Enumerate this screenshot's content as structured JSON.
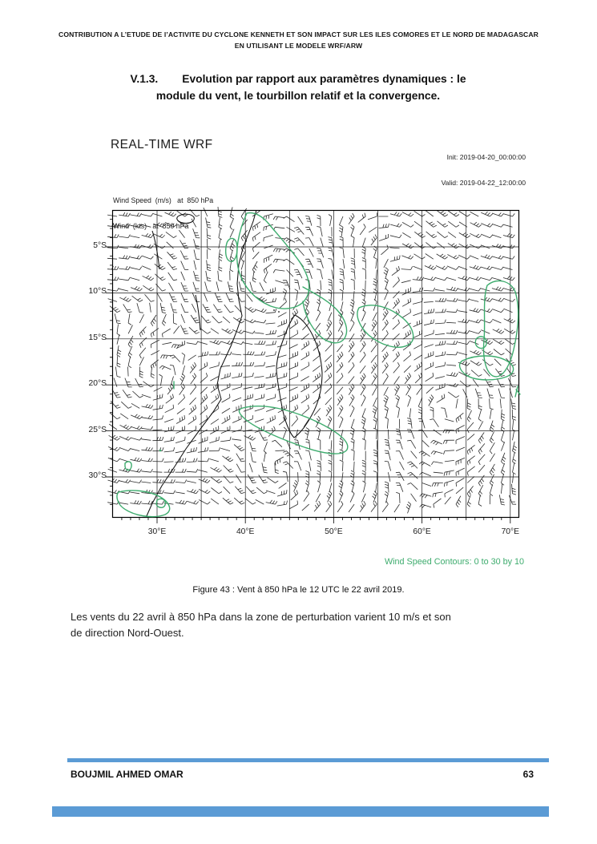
{
  "page_header": {
    "line1": "CONTRIBUTION A L’ETUDE DE l’ACTIVITE DU CYCLONE KENNETH ET SON IMPACT SUR LES ILES COMORES ET LE NORD DE MADAGASCAR",
    "line2": "EN UTILISANT LE MODELE WRF/ARW"
  },
  "section": {
    "number": "V.1.3.",
    "title_line1": "Evolution par rapport aux paramètres dynamiques : le",
    "title_line2": "module du vent, le tourbillon relatif et la convergence."
  },
  "figure": {
    "model_title": "REAL-TIME WRF",
    "init_time": "Init: 2019-04-20_00:00:00",
    "valid_time": "Valid: 2019-04-22_12:00:00",
    "field_label_line1": "Wind Speed  (m/s)   at  850 hPa",
    "field_label_line2": "Wind  (kts)   at  850 hPa",
    "contour_note": "Wind Speed Contours: 0 to 30 by 10",
    "caption": "Figure 43 : Vent à 850 hPa le 12 UTC le 22 avril 2019.",
    "map": {
      "lat_labels": [
        "5°S",
        "10°S",
        "15°S",
        "20°S",
        "25°S",
        "30°S"
      ],
      "lon_labels": [
        "30°E",
        "40°E",
        "50°E",
        "60°E",
        "70°E"
      ],
      "lat_degrees": [
        5,
        10,
        15,
        20,
        25,
        30
      ],
      "lon_degrees": [
        30,
        40,
        50,
        60,
        70
      ],
      "contour_color": "#3eac6e",
      "barb_color": "#2b2b2b",
      "contour_levels": "0 to 30 by 10"
    }
  },
  "body": {
    "lines": [
      "Les vents du 22 avril à 850 hPa dans la zone de perturbation varient 10 m/s et son",
      "de direction Nord-Ouest."
    ]
  },
  "footer": {
    "author": "BOUJMIL AHMED OMAR",
    "page_number": "63",
    "accent_color": "#5b9bd5"
  }
}
